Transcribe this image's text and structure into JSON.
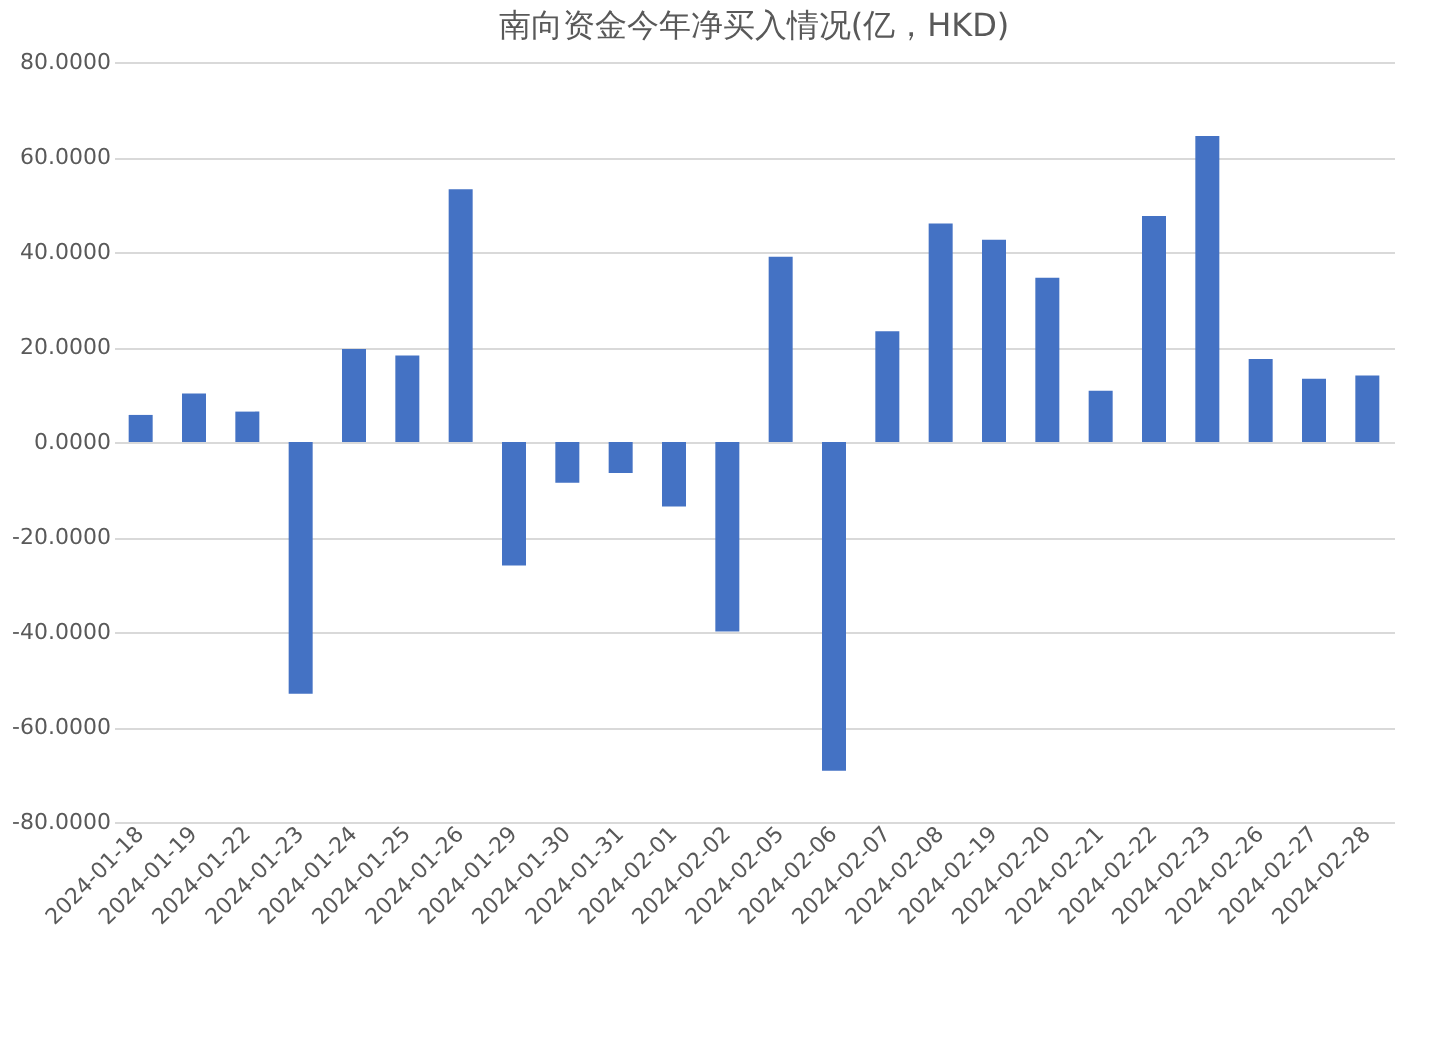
{
  "chart_data": {
    "type": "bar",
    "title": "南向资金今年净买入情况(亿，HKD)",
    "categories": [
      "2024-01-18",
      "2024-01-19",
      "2024-01-22",
      "2024-01-23",
      "2024-01-24",
      "2024-01-25",
      "2024-01-26",
      "2024-01-29",
      "2024-01-30",
      "2024-01-31",
      "2024-02-01",
      "2024-02-02",
      "2024-02-05",
      "2024-02-06",
      "2024-02-07",
      "2024-02-08",
      "2024-02-19",
      "2024-02-20",
      "2024-02-21",
      "2024-02-22",
      "2024-02-23",
      "2024-02-26",
      "2024-02-27",
      "2024-02-28"
    ],
    "values": [
      5.7,
      10.2,
      6.4,
      -53.0,
      19.6,
      18.2,
      53.2,
      -26.0,
      -8.6,
      -6.5,
      -13.6,
      -39.9,
      39.0,
      -69.2,
      23.3,
      46.0,
      42.6,
      34.6,
      10.8,
      47.6,
      64.4,
      17.5,
      13.3,
      14.0
    ],
    "color": "#4472c4",
    "ylim": [
      -80,
      80
    ],
    "yticks": [
      {
        "value": -80,
        "label": "-80.0000"
      },
      {
        "value": -60,
        "label": "-60.0000"
      },
      {
        "value": -40,
        "label": "-40.0000"
      },
      {
        "value": -20,
        "label": "-20.0000"
      },
      {
        "value": 0,
        "label": "0.0000"
      },
      {
        "value": 20,
        "label": "20.0000"
      },
      {
        "value": 40,
        "label": "40.0000"
      },
      {
        "value": 60,
        "label": "60.0000"
      },
      {
        "value": 80,
        "label": "80.0000"
      }
    ],
    "grid": "y"
  }
}
